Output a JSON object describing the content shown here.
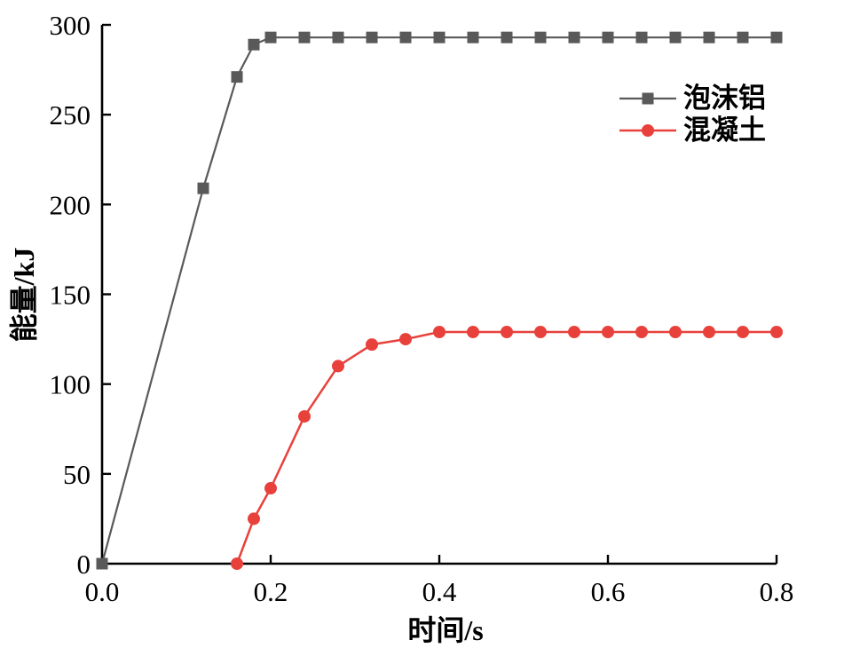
{
  "figure": {
    "background": "#ffffff",
    "axis_color": "#000000",
    "text_color": "#000000"
  },
  "chart_data": {
    "type": "line",
    "title": "",
    "xlabel": "时间/s",
    "ylabel": "能量/kJ",
    "xlim": [
      0.0,
      0.8
    ],
    "ylim": [
      0,
      300
    ],
    "x_tick_values": [
      0.0,
      0.2,
      0.4,
      0.6,
      0.8
    ],
    "x_tick_labels": [
      "0.0",
      "0.2",
      "0.4",
      "0.6",
      "0.8"
    ],
    "y_tick_values": [
      0,
      50,
      100,
      150,
      200,
      250,
      300
    ],
    "y_tick_labels": [
      "0",
      "50",
      "100",
      "150",
      "200",
      "250",
      "300"
    ],
    "grid": false,
    "legend": {
      "position": "inside-upper-right",
      "border": false
    },
    "series": [
      {
        "name": "泡沫铝",
        "color": "#595959",
        "marker": "square",
        "marker_size": 13,
        "line_width": 2.2,
        "x": [
          0,
          0.12,
          0.16,
          0.18,
          0.2,
          0.24,
          0.28,
          0.32,
          0.36,
          0.4,
          0.44,
          0.48,
          0.52,
          0.56,
          0.6,
          0.64,
          0.68,
          0.72,
          0.76,
          0.8
        ],
        "y": [
          0,
          209,
          271,
          289,
          293,
          293,
          293,
          293,
          293,
          293,
          293,
          293,
          293,
          293,
          293,
          293,
          293,
          293,
          293,
          293
        ]
      },
      {
        "name": "混凝土",
        "color": "#e8413c",
        "marker": "circle",
        "marker_size": 14,
        "line_width": 2.5,
        "x": [
          0.16,
          0.18,
          0.2,
          0.24,
          0.28,
          0.32,
          0.36,
          0.4,
          0.44,
          0.48,
          0.52,
          0.56,
          0.6,
          0.64,
          0.68,
          0.72,
          0.76,
          0.8
        ],
        "y": [
          0,
          25,
          42,
          82,
          110,
          122,
          125,
          129,
          129,
          129,
          129,
          129,
          129,
          129,
          129,
          129,
          129,
          129
        ]
      }
    ]
  }
}
